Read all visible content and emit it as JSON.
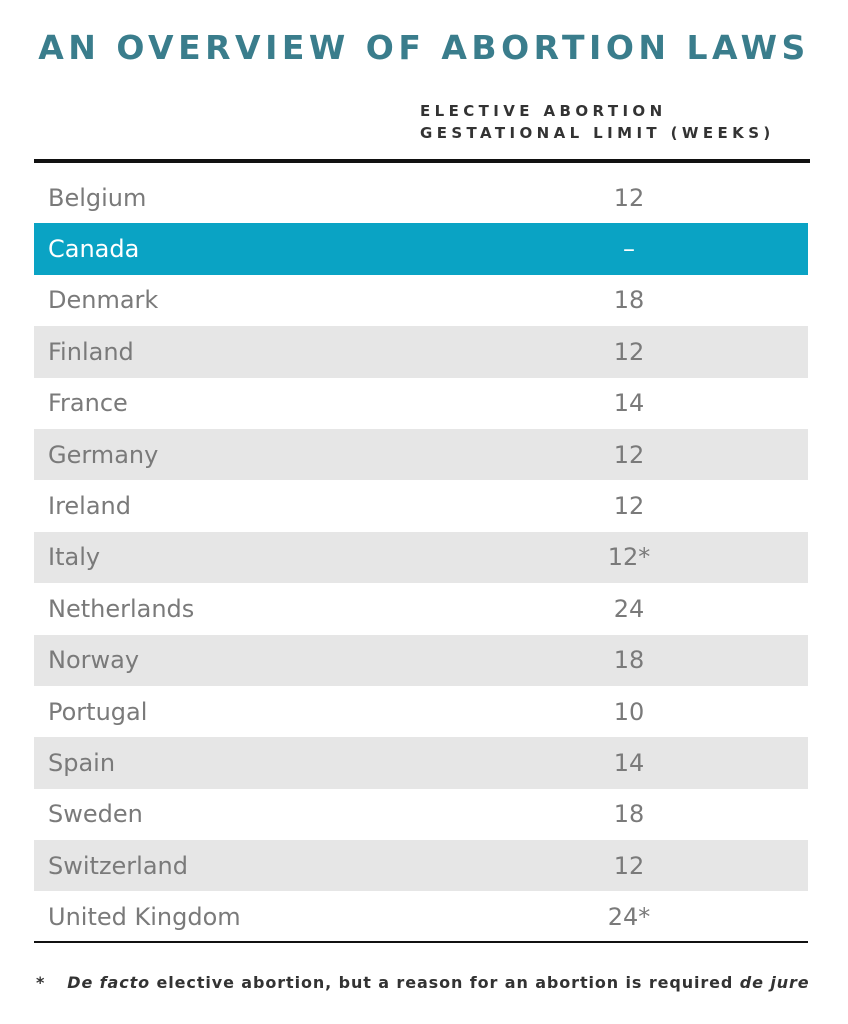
{
  "title": "AN OVERVIEW OF ABORTION LAWS",
  "table": {
    "column_header": [
      "ELECTIVE ABORTION",
      "GESTATIONAL LIMIT (WEEKS)"
    ],
    "rows": [
      [
        "Belgium",
        "12"
      ],
      [
        "Canada",
        "–"
      ],
      [
        "Denmark",
        "18"
      ],
      [
        "Finland",
        "12"
      ],
      [
        "France",
        "14"
      ],
      [
        "Germany",
        "12"
      ],
      [
        "Ireland",
        "12"
      ],
      [
        "Italy",
        "12*"
      ],
      [
        "Netherlands",
        "24"
      ],
      [
        "Norway",
        "18"
      ],
      [
        "Portugal",
        "10"
      ],
      [
        "Spain",
        "14"
      ],
      [
        "Sweden",
        "18"
      ],
      [
        "Switzerland",
        "12"
      ],
      [
        "United Kingdom",
        "24*"
      ]
    ]
  },
  "footnote": {
    "marker": "*",
    "parts": [
      "De facto",
      " elective abortion, but a reason for an abortion is required ",
      "de jure"
    ]
  }
}
